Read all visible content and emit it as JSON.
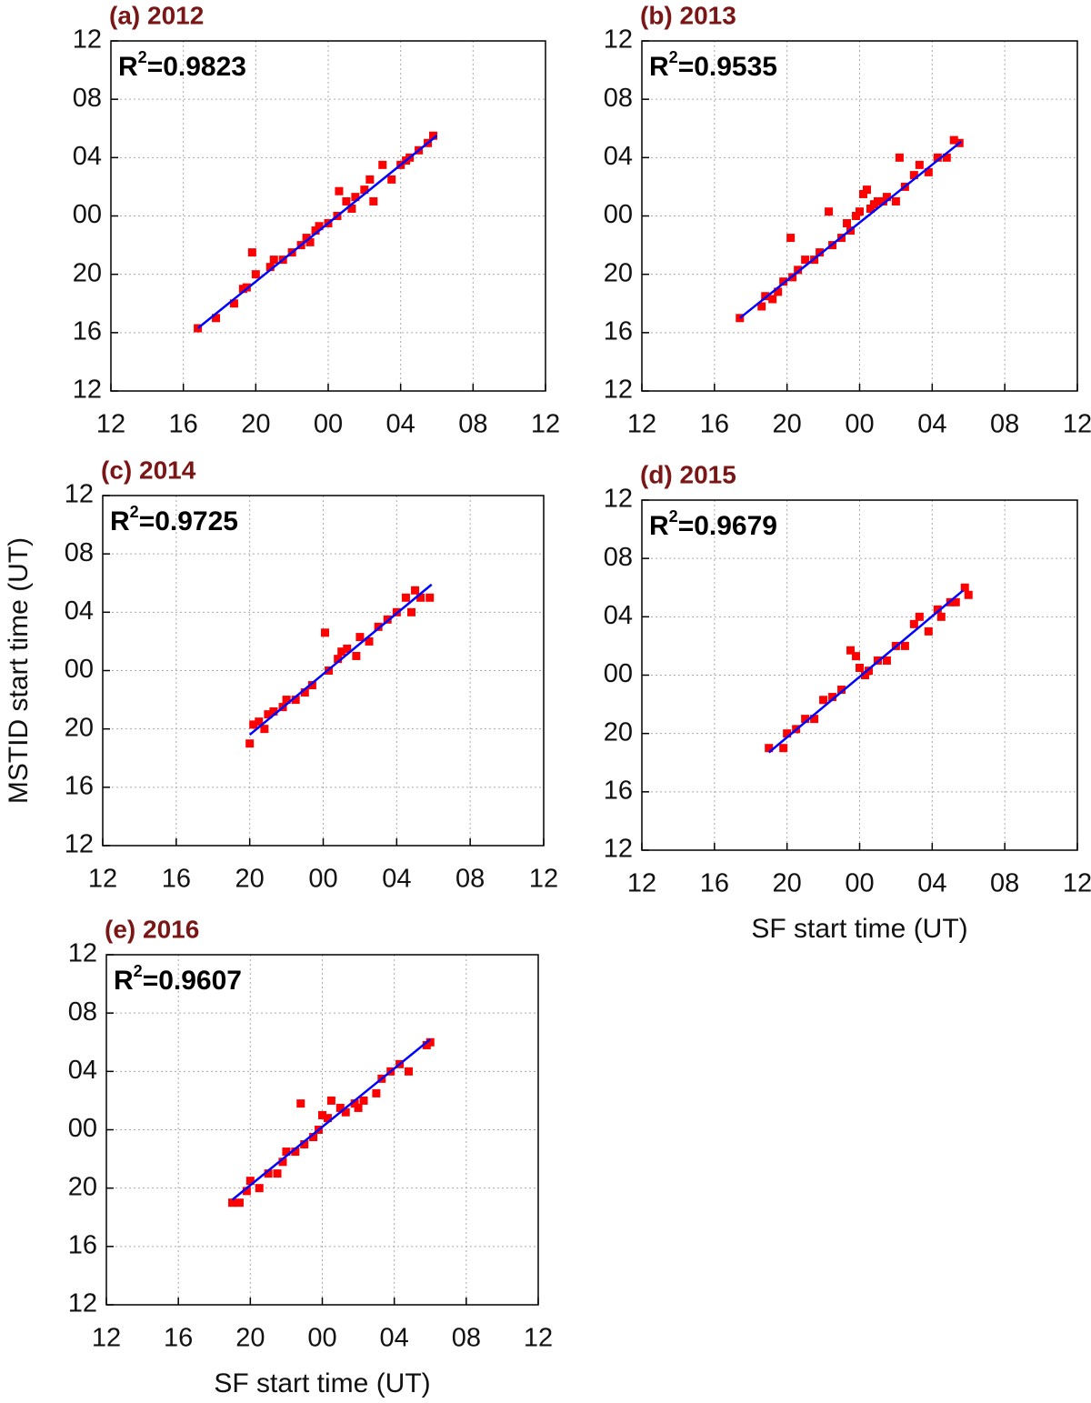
{
  "chart_data": [
    {
      "type": "scatter",
      "title": "(a) 2012",
      "annotation": [
        "R",
        "2",
        "=0.9823"
      ],
      "xlim": [
        12,
        36
      ],
      "xticks": [
        12,
        16,
        20,
        {
          "value": 24,
          "label": "00"
        },
        {
          "value": 28,
          "label": "04"
        },
        {
          "value": 32,
          "label": "08"
        },
        {
          "value": 36,
          "label": "12"
        }
      ],
      "ylim": [
        12,
        36
      ],
      "yticks": [
        12,
        16,
        20,
        {
          "value": 24,
          "label": "00"
        },
        {
          "value": 28,
          "label": "04"
        },
        {
          "value": 32,
          "label": "08"
        },
        {
          "value": 36,
          "label": "12"
        }
      ],
      "grid": true,
      "series": [
        {
          "color": "#ff0000",
          "x": [
            16.8,
            17.8,
            18.8,
            19.3,
            19.5,
            19.8,
            20.0,
            20.8,
            21.0,
            21.5,
            22.0,
            22.5,
            22.8,
            23.0,
            23.3,
            23.5,
            24.0,
            24.5,
            24.6,
            25.0,
            25.3,
            25.5,
            26.0,
            26.3,
            26.5,
            27.0,
            27.5,
            28.0,
            28.3,
            28.5,
            29.0,
            29.5,
            29.8
          ],
          "values": [
            16.3,
            17.0,
            18.0,
            19.0,
            19.1,
            21.5,
            20.0,
            20.5,
            21.0,
            21.0,
            21.5,
            22.0,
            22.5,
            22.2,
            23.0,
            23.3,
            23.5,
            24.0,
            25.7,
            25.0,
            24.5,
            25.3,
            25.8,
            26.5,
            25.0,
            27.5,
            26.5,
            27.5,
            27.8,
            28.0,
            28.5,
            29.0,
            29.5
          ]
        }
      ],
      "fit": {
        "color": "#0000ff",
        "x": [
          16.8,
          30.0
        ],
        "values": [
          16.3,
          29.5
        ]
      }
    },
    {
      "type": "scatter",
      "title": "(b) 2013",
      "annotation": [
        "R",
        "2",
        "=0.9535"
      ],
      "xlim": [
        12,
        36
      ],
      "xticks": [
        12,
        16,
        20,
        {
          "value": 24,
          "label": "00"
        },
        {
          "value": 28,
          "label": "04"
        },
        {
          "value": 32,
          "label": "08"
        },
        {
          "value": 36,
          "label": "12"
        }
      ],
      "ylim": [
        12,
        36
      ],
      "yticks": [
        12,
        16,
        20,
        {
          "value": 24,
          "label": "00"
        },
        {
          "value": 28,
          "label": "04"
        },
        {
          "value": 32,
          "label": "08"
        },
        {
          "value": 36,
          "label": "12"
        }
      ],
      "grid": true,
      "series": [
        {
          "color": "#ff0000",
          "x": [
            17.4,
            18.6,
            18.8,
            19.2,
            19.5,
            19.8,
            20.2,
            20.3,
            20.6,
            21.0,
            21.5,
            21.8,
            22.3,
            22.5,
            23.0,
            23.3,
            23.5,
            23.8,
            24.0,
            24.2,
            24.4,
            24.6,
            24.8,
            25.0,
            25.3,
            25.5,
            26.0,
            26.2,
            26.5,
            27.0,
            27.3,
            27.8,
            28.3,
            28.8,
            29.2,
            29.5
          ],
          "values": [
            17.0,
            17.8,
            18.5,
            18.3,
            18.8,
            19.5,
            22.5,
            19.8,
            20.3,
            21.0,
            21.0,
            21.5,
            24.3,
            22.0,
            22.5,
            23.5,
            23.0,
            24.0,
            24.3,
            25.5,
            25.8,
            24.5,
            24.8,
            25.0,
            25.0,
            25.3,
            25.0,
            28.0,
            26.0,
            26.8,
            27.5,
            27.0,
            28.0,
            28.0,
            29.2,
            29.0
          ]
        }
      ],
      "fit": {
        "color": "#0000ff",
        "x": [
          17.4,
          29.6
        ],
        "values": [
          17.0,
          29.1
        ]
      }
    },
    {
      "type": "scatter",
      "title": "(c) 2014",
      "annotation": [
        "R",
        "2",
        "=0.9725"
      ],
      "ylabel": "MSTID start time (UT)",
      "xlim": [
        12,
        36
      ],
      "xticks": [
        12,
        16,
        20,
        {
          "value": 24,
          "label": "00"
        },
        {
          "value": 28,
          "label": "04"
        },
        {
          "value": 32,
          "label": "08"
        },
        {
          "value": 36,
          "label": "12"
        }
      ],
      "ylim": [
        12,
        36
      ],
      "yticks": [
        12,
        16,
        20,
        {
          "value": 24,
          "label": "00"
        },
        {
          "value": 28,
          "label": "04"
        },
        {
          "value": 32,
          "label": "08"
        },
        {
          "value": 36,
          "label": "12"
        }
      ],
      "grid": true,
      "series": [
        {
          "color": "#ff0000",
          "x": [
            20.0,
            20.2,
            20.5,
            20.8,
            21.0,
            21.3,
            21.8,
            22.0,
            22.5,
            23.0,
            23.4,
            24.1,
            24.3,
            24.8,
            25.0,
            25.3,
            25.8,
            26.0,
            26.5,
            27.0,
            27.5,
            28.0,
            28.5,
            28.8,
            29.0,
            29.3,
            29.8
          ],
          "values": [
            19.0,
            20.3,
            20.5,
            20.0,
            21.0,
            21.2,
            21.5,
            22.0,
            22.0,
            22.5,
            23.0,
            26.6,
            24.0,
            24.8,
            25.3,
            25.5,
            25.0,
            26.3,
            26.0,
            27.0,
            27.5,
            28.0,
            29.0,
            28.0,
            29.5,
            29.0,
            29.0
          ]
        }
      ],
      "fit": {
        "color": "#0000ff",
        "x": [
          20.0,
          29.9
        ],
        "values": [
          19.6,
          29.9
        ]
      }
    },
    {
      "type": "scatter",
      "title": "(d) 2015",
      "annotation": [
        "R",
        "2",
        "=0.9679"
      ],
      "xlabel": "SF start time (UT)",
      "xlim": [
        12,
        36
      ],
      "xticks": [
        12,
        16,
        20,
        {
          "value": 24,
          "label": "00"
        },
        {
          "value": 28,
          "label": "04"
        },
        {
          "value": 32,
          "label": "08"
        },
        {
          "value": 36,
          "label": "12"
        }
      ],
      "ylim": [
        12,
        36
      ],
      "yticks": [
        12,
        16,
        20,
        {
          "value": 24,
          "label": "00"
        },
        {
          "value": 28,
          "label": "04"
        },
        {
          "value": 32,
          "label": "08"
        },
        {
          "value": 36,
          "label": "12"
        }
      ],
      "grid": true,
      "series": [
        {
          "color": "#ff0000",
          "x": [
            19.0,
            19.8,
            20.0,
            20.5,
            21.0,
            21.5,
            22.0,
            22.5,
            23.0,
            23.5,
            23.8,
            24.0,
            24.3,
            24.5,
            25.0,
            25.5,
            26.0,
            26.5,
            27.0,
            27.3,
            27.8,
            28.3,
            28.5,
            29.0,
            29.3,
            29.8,
            30.0
          ],
          "values": [
            19.0,
            19.0,
            20.0,
            20.3,
            21.0,
            21.0,
            22.3,
            22.5,
            23.0,
            25.7,
            25.3,
            24.5,
            24.0,
            24.3,
            25.0,
            25.0,
            26.0,
            26.0,
            27.5,
            28.0,
            27.0,
            28.5,
            28.0,
            29.0,
            29.0,
            30.0,
            29.5
          ]
        }
      ],
      "fit": {
        "color": "#0000ff",
        "x": [
          19.0,
          29.7
        ],
        "values": [
          18.7,
          29.8
        ]
      }
    },
    {
      "type": "scatter",
      "title": "(e) 2016",
      "annotation": [
        "R",
        "2",
        "=0.9607"
      ],
      "xlabel": "SF start time (UT)",
      "xlim": [
        12,
        36
      ],
      "xticks": [
        12,
        16,
        20,
        {
          "value": 24,
          "label": "00"
        },
        {
          "value": 28,
          "label": "04"
        },
        {
          "value": 32,
          "label": "08"
        },
        {
          "value": 36,
          "label": "12"
        }
      ],
      "ylim": [
        12,
        36
      ],
      "yticks": [
        12,
        16,
        20,
        {
          "value": 24,
          "label": "00"
        },
        {
          "value": 28,
          "label": "04"
        },
        {
          "value": 32,
          "label": "08"
        },
        {
          "value": 36,
          "label": "12"
        }
      ],
      "grid": true,
      "series": [
        {
          "color": "#ff0000",
          "x": [
            19.0,
            19.4,
            19.8,
            20.0,
            20.5,
            21.0,
            21.5,
            21.8,
            22.0,
            22.5,
            22.8,
            23.0,
            23.5,
            23.8,
            24.0,
            24.3,
            24.5,
            25.0,
            25.3,
            25.8,
            26.0,
            26.3,
            27.0,
            27.3,
            27.8,
            28.3,
            28.8,
            29.8,
            30.0
          ],
          "values": [
            19.0,
            19.0,
            19.8,
            20.5,
            20.0,
            21.0,
            21.0,
            21.8,
            22.5,
            22.5,
            25.8,
            23.0,
            23.5,
            24.0,
            25.0,
            24.8,
            26.0,
            25.5,
            25.2,
            25.8,
            25.5,
            26.0,
            26.5,
            27.5,
            28.0,
            28.5,
            28.0,
            29.8,
            30.0
          ]
        }
      ],
      "fit": {
        "color": "#0000ff",
        "x": [
          19.0,
          30.0
        ],
        "values": [
          19.2,
          30.2
        ]
      }
    }
  ]
}
